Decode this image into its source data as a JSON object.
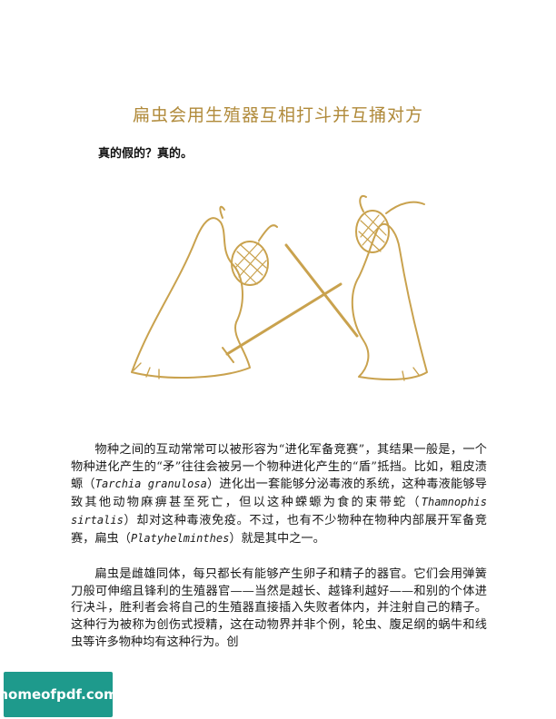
{
  "title": "扁虫会用生殖器互相打斗并互捅对方",
  "subtitle": "真的假的？真的。",
  "paragraph1": {
    "text_a": "物种之间的互动常常可以被形容为“进化军备竞赛”，其结果一般是，一个物种进化产生的“矛”往往会被另一个物种进化产生的“盾”抵挡。比如，粗皮渍螈（",
    "latin_a": "Tarchia granulosa",
    "text_b": "）进化出一套能够分泌毒液的系统，这种毒液能够导致其他动物麻痹甚至死亡，但以这种蝾螈为食的束带蛇（",
    "latin_b": "Thamnophis sirtalis",
    "text_c": "）却对这种毒液免疫。不过，也有不少物种在物种内部展开军备竞赛，扁虫（",
    "latin_c": "Platyhelminthes",
    "text_d": "）就是其中之一。"
  },
  "paragraph2": "扁虫是雌雄同体，每只都长有能够产生卵子和精子的器官。它们会用弹簧刀般可伸缩且锋利的生殖器官——当然是越长、越锋利越好——和别的个体进行决斗，胜利者会将自己的生殖器直接插入失败者体内，并注射自己的精子。这种行为被称为创伤式授精，这在动物界并非个例，轮虫、腹足纲的蜗牛和线虫等许多物种均有这种行为。创",
  "watermark": "homeofpdf.com",
  "colors": {
    "title": "#b08a3a",
    "illustration": "#c9a24e",
    "watermark_bg": "#1e9a8c"
  }
}
